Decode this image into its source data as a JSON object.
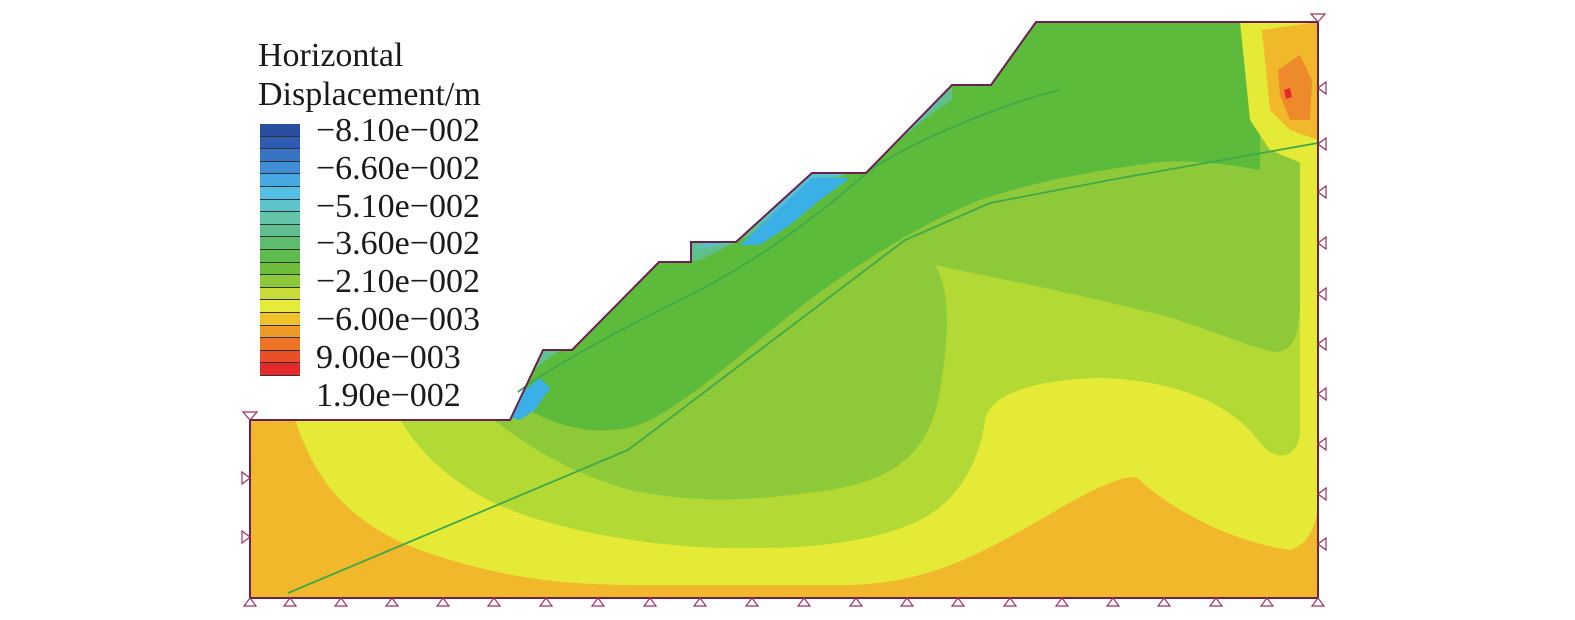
{
  "legend": {
    "title_line1": "Horizontal",
    "title_line2": "Displacement/m",
    "labels": [
      "−8.10e−002",
      "−6.60e−002",
      "−5.10e−002",
      "−3.60e−002",
      "−2.10e−002",
      "−6.00e−003",
      "9.00e−003",
      "1.90e−002"
    ],
    "colors": [
      "#2a4ea0",
      "#2f5cb3",
      "#3874c4",
      "#3f8ed6",
      "#46a8e2",
      "#52c0e4",
      "#5ec4cb",
      "#64c4a8",
      "#5fbf8e",
      "#5fbe6e",
      "#5dbb4f",
      "#6bbd3a",
      "#8bc83a",
      "#c7dc38",
      "#e6ea38",
      "#efc229",
      "#ee9a26",
      "#eb7426",
      "#e84f26",
      "#e3292b"
    ]
  },
  "colors": {
    "far_negative": "#3ab0e6",
    "strong_negative": "#58c1cf",
    "mid_negative": "#60c08c",
    "moderate_negative": "#5dbb3c",
    "weak_negative": "#8ec93a",
    "small_negative": "#b3d935",
    "near_zero": "#e5ea37",
    "positive": "#f0b82a",
    "strong_positive": "#ee8a2a",
    "max_positive": "#e3292b",
    "outline": "#6b2050",
    "support_symbol": "#a03060",
    "slip_surface": "#3da94a"
  }
}
